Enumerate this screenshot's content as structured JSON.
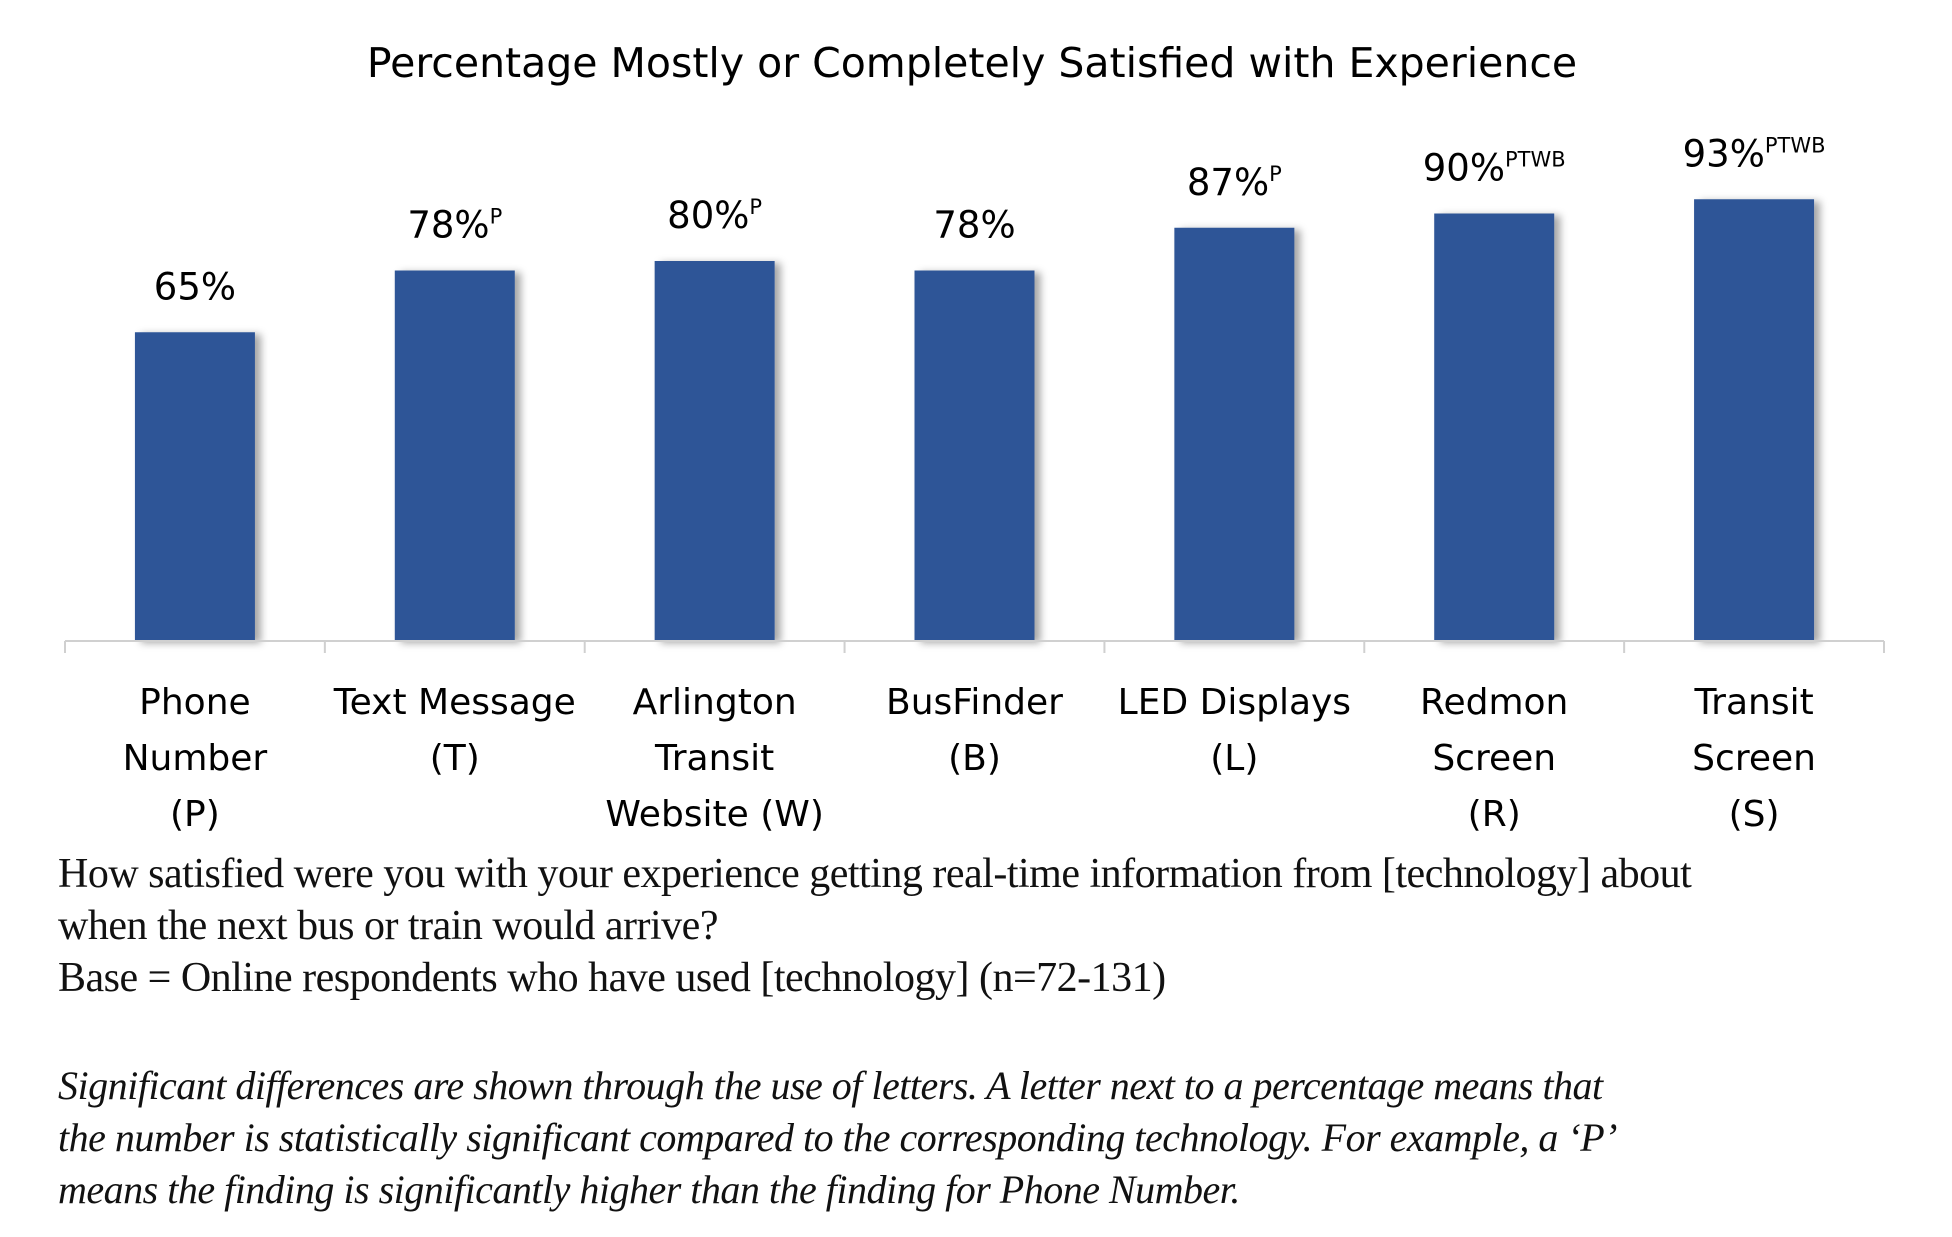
{
  "chart_data": {
    "type": "bar",
    "title": "Percentage Mostly or Completely Satisfied with Experience",
    "categories": [
      [
        "Phone",
        "Number",
        "(P)"
      ],
      [
        "Text Message",
        "(T)"
      ],
      [
        "Arlington",
        "Transit",
        "Website (W)"
      ],
      [
        "BusFinder",
        "(B)"
      ],
      [
        "LED Displays",
        "(L)"
      ],
      [
        "Redmon",
        "Screen",
        "(R)"
      ],
      [
        "Transit",
        "Screen",
        "(S)"
      ]
    ],
    "values": [
      65,
      78,
      80,
      78,
      87,
      90,
      93
    ],
    "data_labels": [
      "65%",
      "78%",
      "80%",
      "78%",
      "87%",
      "90%",
      "93%"
    ],
    "significance": [
      "",
      "P",
      "P",
      "",
      "P",
      "PTWB",
      "PTWB"
    ],
    "ylim": [
      0,
      100
    ],
    "grid": false,
    "bar_color": "#2F5597"
  },
  "footnote": {
    "question": [
      "How satisfied were you with your experience getting real-time information from [technology] about",
      "when the next bus or train would arrive?"
    ],
    "base": "Base = Online respondents who have used [technology] (n=72-131)",
    "significance_note": [
      "Significant differences are shown through the use of letters. A letter next to a percentage means that",
      "the number is statistically significant compared to the corresponding technology. For example, a ‘P’",
      "means the finding is significantly higher than the finding for Phone Number."
    ]
  }
}
